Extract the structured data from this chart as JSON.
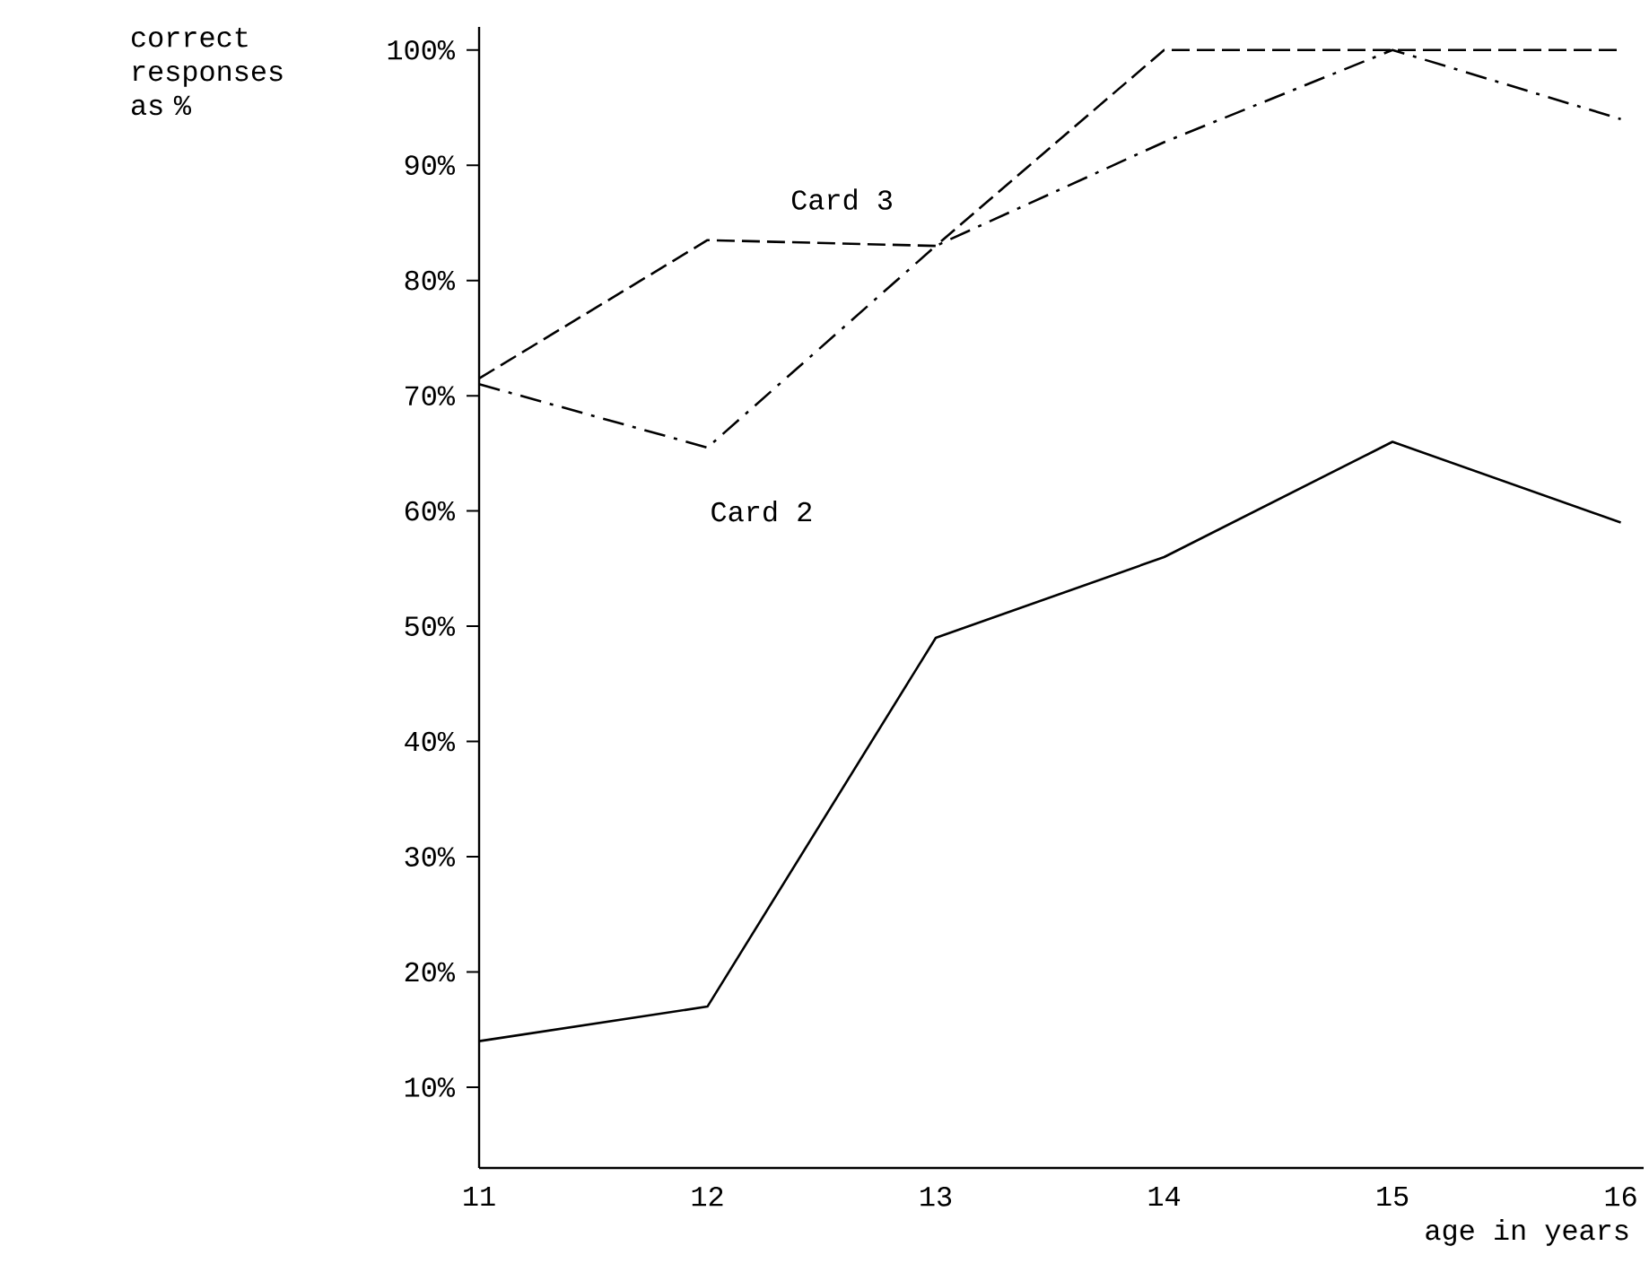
{
  "chart_data": {
    "type": "line",
    "xlabel": "age in years",
    "ylabel": "correct responses as %",
    "x": [
      11,
      12,
      13,
      14,
      15,
      16
    ],
    "xlim": [
      11,
      16.1
    ],
    "xticks": [
      11,
      12,
      13,
      14,
      15,
      16
    ],
    "ylim": [
      3,
      102
    ],
    "yticks": [
      {
        "value": 10,
        "label": "10%"
      },
      {
        "value": 20,
        "label": "20%"
      },
      {
        "value": 30,
        "label": "30%"
      },
      {
        "value": 40,
        "label": "40%"
      },
      {
        "value": 50,
        "label": "50%"
      },
      {
        "value": 60,
        "label": "60%"
      },
      {
        "value": 70,
        "label": "70%"
      },
      {
        "value": 80,
        "label": "80%"
      },
      {
        "value": 90,
        "label": "90%"
      },
      {
        "value": 100,
        "label": "100%"
      }
    ],
    "grid": false,
    "legend": false,
    "marker": "none",
    "series": [
      {
        "color": "#000000",
        "line_style": "solid",
        "values": [
          14,
          17,
          49,
          56,
          66,
          59
        ]
      },
      {
        "name": "Card 3",
        "color": "#000000",
        "line_style": "dashed",
        "values": [
          71.5,
          83.5,
          83,
          100,
          100,
          100
        ]
      },
      {
        "name": "Card 2",
        "color": "#000000",
        "line_style": "dashdot",
        "values": [
          71,
          65.5,
          83,
          92,
          100,
          94
        ]
      }
    ]
  }
}
